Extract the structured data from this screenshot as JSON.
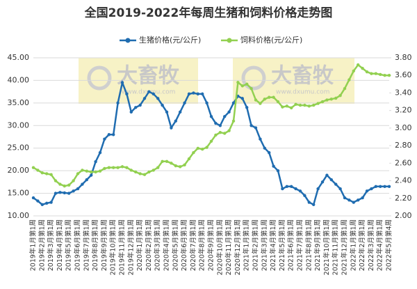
{
  "chart_data": {
    "type": "line",
    "title": "全国2019-2022年每周生猪和饲料价格走势图",
    "watermark": [
      "大畜牧",
      "www.dxumu.com"
    ],
    "categories": [
      "2019年1月第1周",
      null,
      "2019年2月第1周",
      null,
      "2019年3月第1周",
      null,
      "2019年4月第1周",
      null,
      "2019年5月第1周",
      null,
      "2019年6月第1周",
      null,
      "2019年7月第1周",
      null,
      "2019年8月第1周",
      null,
      "2019年9月第1周",
      null,
      "2019年10月第1周",
      null,
      "2019年11月第1周",
      null,
      "2019年12月第1周",
      null,
      "2020年1月第1周",
      null,
      "2020年2月第1周",
      null,
      "2020年3月第1周",
      null,
      "2020年4月第1周",
      null,
      "2020年5月第1周",
      null,
      "2020年6月第1周",
      null,
      "2020年7月第1周",
      null,
      "2020年8月第1周",
      null,
      "2020年9月第1周",
      null,
      "2020年10月第1周",
      null,
      "2020年11月第1周",
      null,
      "2020年12月第1周",
      null,
      "2021年1月第1周",
      null,
      "2021年2月第1周",
      null,
      "2021年3月第1周",
      null,
      "2021年4月第1周",
      null,
      "2021年5月第1周",
      null,
      "2021年6月第1周",
      null,
      "2021年7月第1周",
      null,
      "2021年8月第1周",
      null,
      "2021年9月第1周",
      null,
      "2021年10月第1周",
      null,
      "2021年11月第1周",
      null,
      "2021年12月第1周",
      null,
      "2022年1月第1周",
      null,
      "2022年2月第1周",
      null,
      "2022年3月第1周",
      null,
      "2022年4月第1周",
      null,
      "2022年5月第4周"
    ],
    "series": [
      {
        "name": "生猪价格(元/公斤)",
        "color": "#1f6cb0",
        "values": [
          14,
          13.3,
          12.5,
          12.8,
          13,
          15,
          15.2,
          15.1,
          15,
          15.5,
          16,
          17,
          18,
          19,
          22,
          24,
          27,
          28,
          28,
          35,
          39.5,
          37,
          33,
          34,
          34.5,
          36,
          37.5,
          37,
          36,
          34.5,
          33,
          29.5,
          31,
          33,
          35,
          37,
          37.2,
          37,
          37,
          35,
          32,
          30.5,
          30,
          32,
          33,
          35,
          36.5,
          36,
          34,
          30,
          29.5,
          27,
          25,
          24,
          21,
          20,
          16,
          16.5,
          16.5,
          16,
          15.5,
          14.5,
          13,
          12.5,
          16,
          17.5,
          19,
          18,
          17,
          16,
          14,
          13.5,
          13,
          13.5,
          14,
          15.5,
          16,
          16.5,
          16.5,
          16.5,
          16.5
        ]
      },
      {
        "name": "饲料价格(元/公斤)",
        "color": "#92d050",
        "axis": "y2",
        "values": [
          2.55,
          2.52,
          2.49,
          2.48,
          2.47,
          2.4,
          2.36,
          2.34,
          2.35,
          2.4,
          2.48,
          2.52,
          2.51,
          2.5,
          2.5,
          2.51,
          2.54,
          2.55,
          2.55,
          2.55,
          2.56,
          2.55,
          2.52,
          2.5,
          2.48,
          2.47,
          2.5,
          2.52,
          2.55,
          2.62,
          2.62,
          2.6,
          2.57,
          2.56,
          2.58,
          2.65,
          2.72,
          2.77,
          2.76,
          2.78,
          2.85,
          2.92,
          2.95,
          2.94,
          2.97,
          3.08,
          3.52,
          3.48,
          3.5,
          3.45,
          3.32,
          3.28,
          3.33,
          3.35,
          3.35,
          3.3,
          3.24,
          3.25,
          3.23,
          3.27,
          3.26,
          3.26,
          3.25,
          3.26,
          3.28,
          3.3,
          3.32,
          3.33,
          3.34,
          3.37,
          3.45,
          3.55,
          3.65,
          3.72,
          3.68,
          3.64,
          3.62,
          3.62,
          3.61,
          3.6,
          3.6
        ]
      }
    ],
    "ylim": [
      10,
      45
    ],
    "yticks": [
      {
        "value": 10,
        "label": "10.00"
      },
      {
        "value": 15,
        "label": "15.00"
      },
      {
        "value": 20,
        "label": "20.00"
      },
      {
        "value": 25,
        "label": "25.00"
      },
      {
        "value": 30,
        "label": "30.00"
      },
      {
        "value": 35,
        "label": "35.00"
      },
      {
        "value": 40,
        "label": "40.00"
      },
      {
        "value": 45,
        "label": "45.00"
      }
    ],
    "y2lim": [
      2,
      3.8
    ],
    "y2ticks": [
      {
        "value": 2,
        "label": "2.00"
      },
      {
        "value": 2.2,
        "label": "2.20"
      },
      {
        "value": 2.4,
        "label": "2.40"
      },
      {
        "value": 2.6,
        "label": "2.60"
      },
      {
        "value": 2.8,
        "label": "2.80"
      },
      {
        "value": 3,
        "label": "3.00"
      },
      {
        "value": 3.2,
        "label": "3.20"
      },
      {
        "value": 3.4,
        "label": "3.40"
      },
      {
        "value": 3.6,
        "label": "3.60"
      },
      {
        "value": 3.8,
        "label": "3.80"
      }
    ],
    "grid": true,
    "legend": "top"
  }
}
